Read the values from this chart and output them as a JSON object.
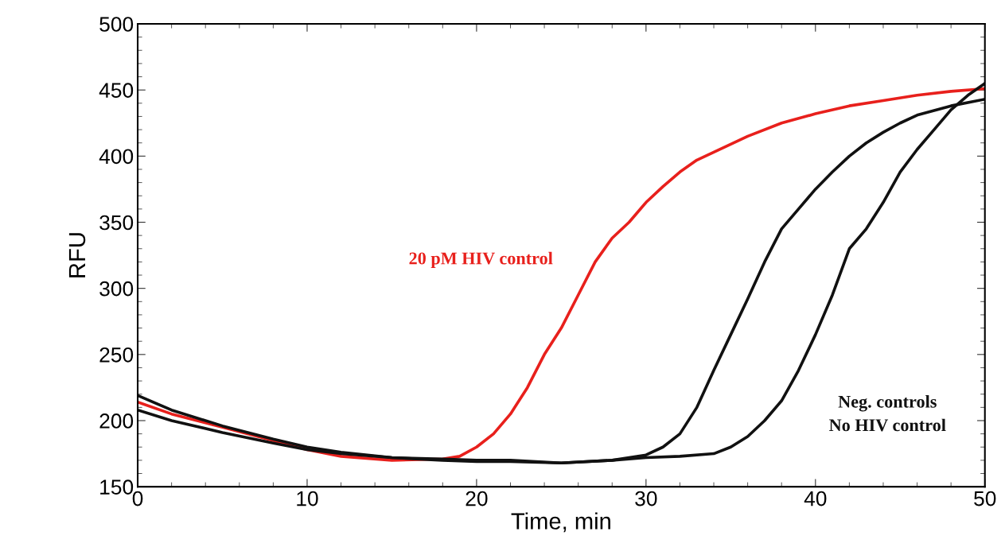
{
  "chart_data": {
    "type": "line",
    "xlabel": "Time, min",
    "ylabel": "RFU",
    "xlim": [
      0,
      50
    ],
    "ylim": [
      150,
      500
    ],
    "xticks": [
      0,
      10,
      20,
      30,
      40,
      50
    ],
    "yticks": [
      150,
      200,
      250,
      300,
      350,
      400,
      450,
      500
    ],
    "grid": false,
    "marker": "none",
    "line_style": "solid",
    "series": [
      {
        "name": "20 pM HIV control",
        "color": "#e8201c",
        "x": [
          0,
          2,
          5,
          8,
          10,
          12,
          15,
          18,
          19,
          20,
          21,
          22,
          23,
          24,
          25,
          26,
          27,
          28,
          29,
          30,
          31,
          32,
          33,
          34,
          36,
          38,
          40,
          42,
          44,
          46,
          48,
          50
        ],
        "values": [
          214,
          205,
          195,
          185,
          178,
          173,
          170,
          171,
          173,
          180,
          190,
          205,
          225,
          250,
          270,
          295,
          320,
          338,
          350,
          365,
          377,
          388,
          397,
          403,
          415,
          425,
          432,
          438,
          442,
          446,
          449,
          451
        ]
      },
      {
        "color": "#111111",
        "x": [
          0,
          2,
          5,
          8,
          10,
          12,
          15,
          18,
          20,
          22,
          25,
          28,
          30,
          31,
          32,
          33,
          34,
          35,
          36,
          37,
          38,
          39,
          40,
          41,
          42,
          43,
          44,
          45,
          46,
          48,
          50
        ],
        "values": [
          219,
          208,
          196,
          186,
          180,
          176,
          172,
          170,
          169,
          169,
          168,
          170,
          174,
          180,
          190,
          210,
          238,
          265,
          292,
          320,
          345,
          360,
          375,
          388,
          400,
          410,
          418,
          425,
          431,
          438,
          443
        ]
      },
      {
        "color": "#111111",
        "x": [
          0,
          2,
          5,
          8,
          10,
          12,
          15,
          18,
          20,
          22,
          25,
          28,
          30,
          32,
          34,
          35,
          36,
          37,
          38,
          39,
          40,
          41,
          42,
          43,
          44,
          45,
          46,
          47,
          48,
          49,
          50
        ],
        "values": [
          208,
          200,
          191,
          183,
          178,
          175,
          172,
          171,
          170,
          170,
          168,
          170,
          172,
          173,
          175,
          180,
          188,
          200,
          215,
          238,
          265,
          295,
          330,
          345,
          365,
          388,
          405,
          420,
          435,
          446,
          455
        ]
      }
    ],
    "annotations": [
      "Neg. controls\nNo HIV control"
    ]
  }
}
